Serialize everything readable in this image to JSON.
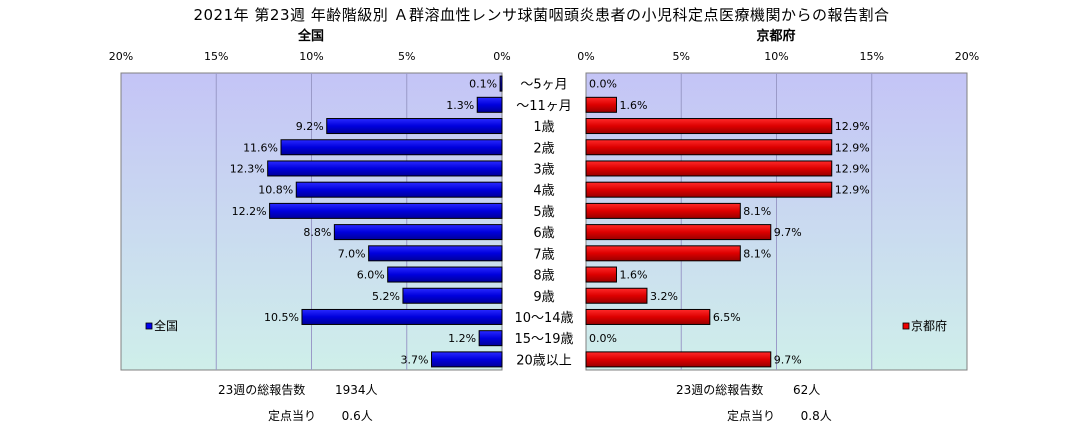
{
  "title": "2021年 第23週 年齢階級別 Ａ群溶血性レンサ球菌咽頭炎患者の小児科定点医療機関からの報告割合",
  "chart_data": [
    {
      "type": "bar",
      "orientation": "horizontal",
      "subtitle": "全国",
      "direction": "right-to-left",
      "xlim": [
        0,
        20
      ],
      "xticks": [
        "20%",
        "15%",
        "10%",
        "5%",
        "0%"
      ],
      "categories": [
        "～5ヶ月",
        "～11ヶ月",
        "1歳",
        "2歳",
        "3歳",
        "4歳",
        "5歳",
        "6歳",
        "7歳",
        "8歳",
        "9歳",
        "10～14歳",
        "15～19歳",
        "20歳以上"
      ],
      "series": [
        {
          "name": "全国",
          "color": "#0000ee",
          "values": [
            0.1,
            1.3,
            9.2,
            11.6,
            12.3,
            10.8,
            12.2,
            8.8,
            7.0,
            6.0,
            5.2,
            10.5,
            1.2,
            3.7
          ],
          "labels": [
            "0.1%",
            "1.3%",
            "9.2%",
            "11.6%",
            "12.3%",
            "10.8%",
            "12.2%",
            "8.8%",
            "7.0%",
            "6.0%",
            "5.2%",
            "10.5%",
            "1.2%",
            "3.7%"
          ]
        }
      ],
      "legend": "bottom-left",
      "background": "#ccccff",
      "grid": true
    },
    {
      "type": "bar",
      "orientation": "horizontal",
      "subtitle": "京都府",
      "direction": "left-to-right",
      "xlim": [
        0,
        20
      ],
      "xticks": [
        "0%",
        "5%",
        "10%",
        "15%",
        "20%"
      ],
      "categories": [
        "～5ヶ月",
        "～11ヶ月",
        "1歳",
        "2歳",
        "3歳",
        "4歳",
        "5歳",
        "6歳",
        "7歳",
        "8歳",
        "9歳",
        "10～14歳",
        "15～19歳",
        "20歳以上"
      ],
      "series": [
        {
          "name": "京都府",
          "color": "#ee0000",
          "values": [
            0.0,
            1.6,
            12.9,
            12.9,
            12.9,
            12.9,
            8.1,
            9.7,
            8.1,
            1.6,
            3.2,
            6.5,
            0.0,
            9.7
          ],
          "labels": [
            "0.0%",
            "1.6%",
            "12.9%",
            "12.9%",
            "12.9%",
            "12.9%",
            "8.1%",
            "9.7%",
            "8.1%",
            "1.6%",
            "3.2%",
            "6.5%",
            "0.0%",
            "9.7%"
          ]
        }
      ],
      "legend": "bottom-right",
      "background": "#ccccff",
      "grid": true
    }
  ],
  "footer": {
    "national_total_label": "23週の総報告数",
    "national_total_value": "1934人",
    "national_per_label": "定点当り",
    "national_per_value": "0.6人",
    "kyoto_total_label": "23週の総報告数",
    "kyoto_total_value": "62人",
    "kyoto_per_label": "定点当り",
    "kyoto_per_value": "0.8人"
  }
}
